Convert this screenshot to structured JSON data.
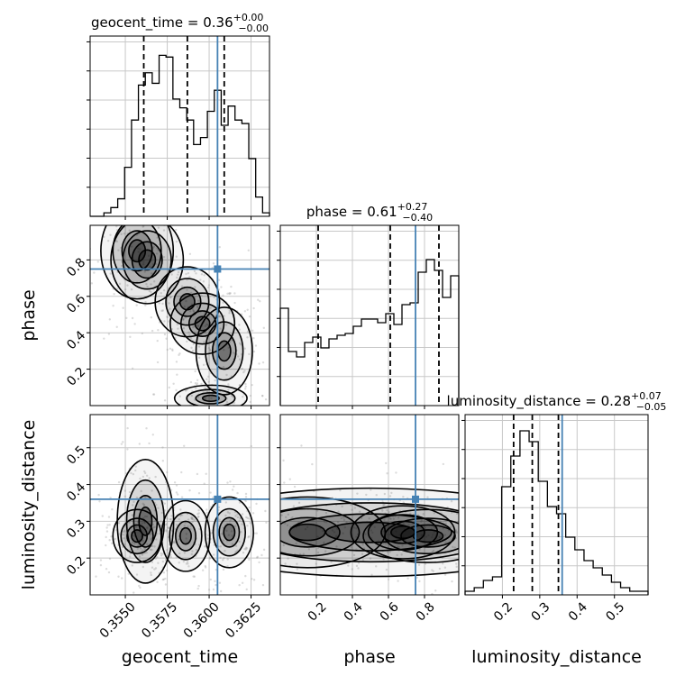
{
  "chart_data": {
    "type": "corner",
    "parameters": [
      "geocent_time",
      "phase",
      "luminosity_distance"
    ],
    "axis_labels": [
      "geocent_time",
      "phase",
      "luminosity_distance"
    ],
    "titles": [
      {
        "name": "geocent_time",
        "value": "0.36",
        "plus": "+0.00",
        "minus": "−0.00"
      },
      {
        "name": "phase",
        "value": "0.61",
        "plus": "+0.27",
        "minus": "−0.40"
      },
      {
        "name": "luminosity_distance",
        "value": "0.28",
        "plus": "+0.07",
        "minus": "−0.05"
      }
    ],
    "ranges": [
      [
        0.3529,
        0.3636
      ],
      [
        0.0,
        0.99
      ],
      [
        0.1,
        0.59
      ]
    ],
    "ticks": [
      {
        "values": [
          0.355,
          0.3575,
          0.36,
          0.3625
        ],
        "labels": [
          "0.3550",
          "0.3575",
          "0.3600",
          "0.3625"
        ]
      },
      {
        "values": [
          0.2,
          0.4,
          0.6,
          0.8
        ],
        "labels": [
          "0.2",
          "0.4",
          "0.6",
          "0.8"
        ]
      },
      {
        "values": [
          0.2,
          0.3,
          0.4,
          0.5
        ],
        "labels": [
          "0.2",
          "0.3",
          "0.4",
          "0.5"
        ]
      }
    ],
    "truths": [
      0.3605,
      0.75,
      0.36
    ],
    "truth_color": "#4682b4",
    "quantiles": [
      [
        0.3561,
        0.3587,
        0.3609
      ],
      [
        0.21,
        0.61,
        0.88
      ],
      [
        0.23,
        0.28,
        0.35
      ]
    ],
    "histograms": [
      [
        0,
        0,
        0.02,
        0.05,
        0.1,
        0.28,
        0.55,
        0.75,
        0.82,
        0.76,
        0.92,
        0.91,
        0.67,
        0.62,
        0.55,
        0.41,
        0.45,
        0.6,
        0.72,
        0.52,
        0.63,
        0.55,
        0.53,
        0.33,
        0.11,
        0.02
      ],
      [
        0.54,
        0.3,
        0.27,
        0.35,
        0.38,
        0.32,
        0.37,
        0.39,
        0.4,
        0.44,
        0.48,
        0.48,
        0.46,
        0.51,
        0.45,
        0.56,
        0.57,
        0.74,
        0.81,
        0.75,
        0.6,
        0.72
      ],
      [
        0.02,
        0.04,
        0.08,
        0.1,
        0.6,
        0.77,
        0.91,
        0.85,
        0.63,
        0.49,
        0.45,
        0.32,
        0.25,
        0.19,
        0.15,
        0.11,
        0.07,
        0.04,
        0.02,
        0.02
      ]
    ],
    "hist_ylims": [
      1.03,
      1.0,
      1.0
    ],
    "density_modes": {
      "phase_vs_geocent_time": [
        {
          "x": 0.3557,
          "y": 0.85,
          "w": 0.0009,
          "h": 0.11
        },
        {
          "x": 0.3563,
          "y": 0.8,
          "w": 0.0009,
          "h": 0.1
        },
        {
          "x": 0.3587,
          "y": 0.57,
          "w": 0.0008,
          "h": 0.08
        },
        {
          "x": 0.3596,
          "y": 0.45,
          "w": 0.0008,
          "h": 0.07
        },
        {
          "x": 0.3609,
          "y": 0.3,
          "w": 0.0007,
          "h": 0.1
        },
        {
          "x": 0.3601,
          "y": 0.04,
          "w": 0.0009,
          "h": 0.03
        }
      ],
      "luminosity_distance_vs_geocent_time": [
        {
          "x": 0.3562,
          "y": 0.3,
          "w": 0.0007,
          "h": 0.07
        },
        {
          "x": 0.3557,
          "y": 0.26,
          "w": 0.0006,
          "h": 0.03
        },
        {
          "x": 0.3586,
          "y": 0.26,
          "w": 0.0006,
          "h": 0.04
        },
        {
          "x": 0.3612,
          "y": 0.27,
          "w": 0.0006,
          "h": 0.04
        }
      ],
      "luminosity_distance_vs_phase": [
        {
          "x": 0.5,
          "y": 0.27,
          "w": 0.45,
          "h": 0.05
        },
        {
          "x": 0.15,
          "y": 0.27,
          "w": 0.18,
          "h": 0.04
        },
        {
          "x": 0.82,
          "y": 0.26,
          "w": 0.15,
          "h": 0.03
        },
        {
          "x": 0.68,
          "y": 0.27,
          "w": 0.12,
          "h": 0.03
        }
      ]
    },
    "grid": true,
    "legend": "none"
  }
}
